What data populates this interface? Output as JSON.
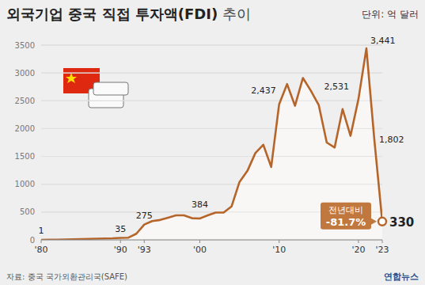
{
  "chart_data": {
    "type": "line",
    "title": "외국기업 중국 직접 투자액(FDI) 추이",
    "unit": "단위: 억 달러",
    "source": "자료: 중국 국가외환관리국(SAFE)",
    "credit": "연합뉴스",
    "categories": [
      "'80",
      null,
      null,
      null,
      null,
      null,
      null,
      null,
      null,
      null,
      "'90",
      null,
      null,
      "'93",
      null,
      null,
      null,
      null,
      null,
      null,
      "'00",
      null,
      null,
      null,
      null,
      null,
      null,
      null,
      null,
      null,
      "'10",
      null,
      null,
      null,
      null,
      null,
      null,
      null,
      null,
      null,
      "'20",
      null,
      null,
      "'23"
    ],
    "values": [
      1,
      3,
      4,
      6,
      10,
      15,
      18,
      21,
      25,
      28,
      35,
      40,
      110,
      275,
      337,
      358,
      400,
      440,
      440,
      390,
      384,
      440,
      490,
      490,
      600,
      1040,
      1240,
      1560,
      1710,
      1310,
      2437,
      2800,
      2410,
      2910,
      2680,
      2420,
      1750,
      1660,
      2350,
      1870,
      2531,
      3441,
      1802,
      330
    ],
    "value_labels": [
      "1",
      null,
      null,
      null,
      null,
      null,
      null,
      null,
      null,
      null,
      "35",
      null,
      null,
      "275",
      null,
      null,
      null,
      null,
      null,
      null,
      "384",
      null,
      null,
      null,
      null,
      null,
      null,
      null,
      null,
      null,
      "2,437",
      null,
      null,
      null,
      null,
      null,
      null,
      null,
      null,
      null,
      "2,531",
      "3,441",
      "1,802",
      "330"
    ],
    "data_labels": true,
    "annotations": [
      "전년대비",
      "-81.7%"
    ],
    "color": "#b5652a",
    "ylim": [
      0,
      3500
    ],
    "yticks": [
      0,
      500,
      1000,
      1500,
      2000,
      2500,
      3000,
      3500
    ],
    "grid": true
  }
}
